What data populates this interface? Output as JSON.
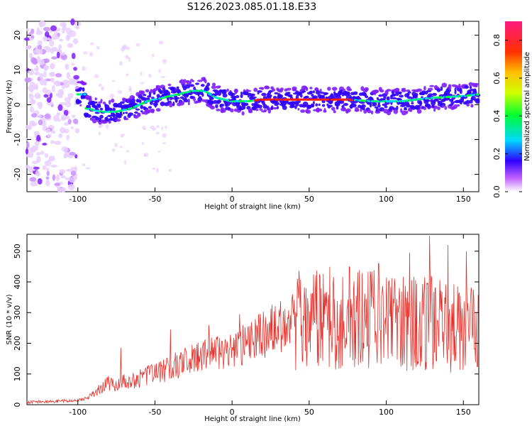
{
  "title": "S126.2023.085.01.18.E33",
  "chart_data": [
    {
      "type": "heatmap",
      "xlabel": "Height of straight line (km)",
      "ylabel": "Frequency (Hz)",
      "xlim": [
        -133,
        160
      ],
      "ylim": [
        -25,
        24
      ],
      "xticks": [
        -100,
        -50,
        0,
        50,
        100,
        150
      ],
      "yticks": [
        -20,
        -10,
        0,
        10,
        20
      ],
      "ridge": [
        {
          "x": -95,
          "y": -1
        },
        {
          "x": -85,
          "y": -2
        },
        {
          "x": -75,
          "y": -2
        },
        {
          "x": -65,
          "y": -1
        },
        {
          "x": -55,
          "y": 1
        },
        {
          "x": -45,
          "y": 2
        },
        {
          "x": -35,
          "y": 3
        },
        {
          "x": -25,
          "y": 4
        },
        {
          "x": -18,
          "y": 4
        },
        {
          "x": -10,
          "y": 2
        },
        {
          "x": 0,
          "y": 1
        },
        {
          "x": 10,
          "y": 1
        },
        {
          "x": 20,
          "y": 1.5
        },
        {
          "x": 40,
          "y": 1.5
        },
        {
          "x": 60,
          "y": 1.5
        },
        {
          "x": 75,
          "y": 1.5
        },
        {
          "x": 90,
          "y": 1
        },
        {
          "x": 110,
          "y": 1
        },
        {
          "x": 130,
          "y": 2
        },
        {
          "x": 150,
          "y": 2.5
        },
        {
          "x": 160,
          "y": 3
        }
      ],
      "colorbar": {
        "label": "Normalized spectral amplitude",
        "range": [
          0.0,
          0.9
        ],
        "ticks": [
          0.0,
          0.2,
          0.4,
          0.6,
          0.8
        ]
      }
    },
    {
      "type": "line",
      "xlabel": "Height of straight line (km)",
      "ylabel": "SNR (10 * v/v)",
      "xlim": [
        -133,
        160
      ],
      "ylim": [
        0,
        555
      ],
      "xticks": [
        -100,
        -50,
        0,
        50,
        100,
        150
      ],
      "yticks": [
        0,
        100,
        200,
        300,
        400,
        500
      ],
      "series": [
        {
          "color": "#e8302a",
          "x": [
            -133,
            -120,
            -110,
            -100,
            -95,
            -90,
            -85,
            -80,
            -75,
            -70,
            -65,
            -60,
            -55,
            -50,
            -45,
            -40,
            -35,
            -30,
            -25,
            -20,
            -15,
            -10,
            -5,
            0,
            5,
            10,
            15,
            20,
            25,
            30,
            35,
            40,
            45,
            50,
            55,
            60,
            65,
            70,
            75,
            80,
            85,
            90,
            95,
            100,
            105,
            110,
            115,
            120,
            125,
            130,
            135,
            140,
            145,
            150,
            155,
            160
          ],
          "y": [
            8,
            10,
            12,
            14,
            20,
            35,
            55,
            70,
            60,
            80,
            75,
            85,
            95,
            100,
            110,
            120,
            130,
            140,
            150,
            160,
            165,
            170,
            175,
            180,
            190,
            200,
            215,
            225,
            240,
            250,
            262,
            270,
            275,
            272,
            278,
            285,
            280,
            285,
            280,
            285,
            275,
            280,
            270,
            275,
            270,
            275,
            265,
            270,
            260,
            265,
            255,
            250,
            260,
            245,
            240,
            230
          ]
        }
      ],
      "peaks": [
        {
          "x": -72,
          "y": 185
        },
        {
          "x": -40,
          "y": 245
        },
        {
          "x": -15,
          "y": 260
        },
        {
          "x": 5,
          "y": 295
        },
        {
          "x": 95,
          "y": 460
        },
        {
          "x": 115,
          "y": 495
        },
        {
          "x": 128,
          "y": 550
        },
        {
          "x": 140,
          "y": 520
        },
        {
          "x": 152,
          "y": 500
        }
      ]
    }
  ]
}
